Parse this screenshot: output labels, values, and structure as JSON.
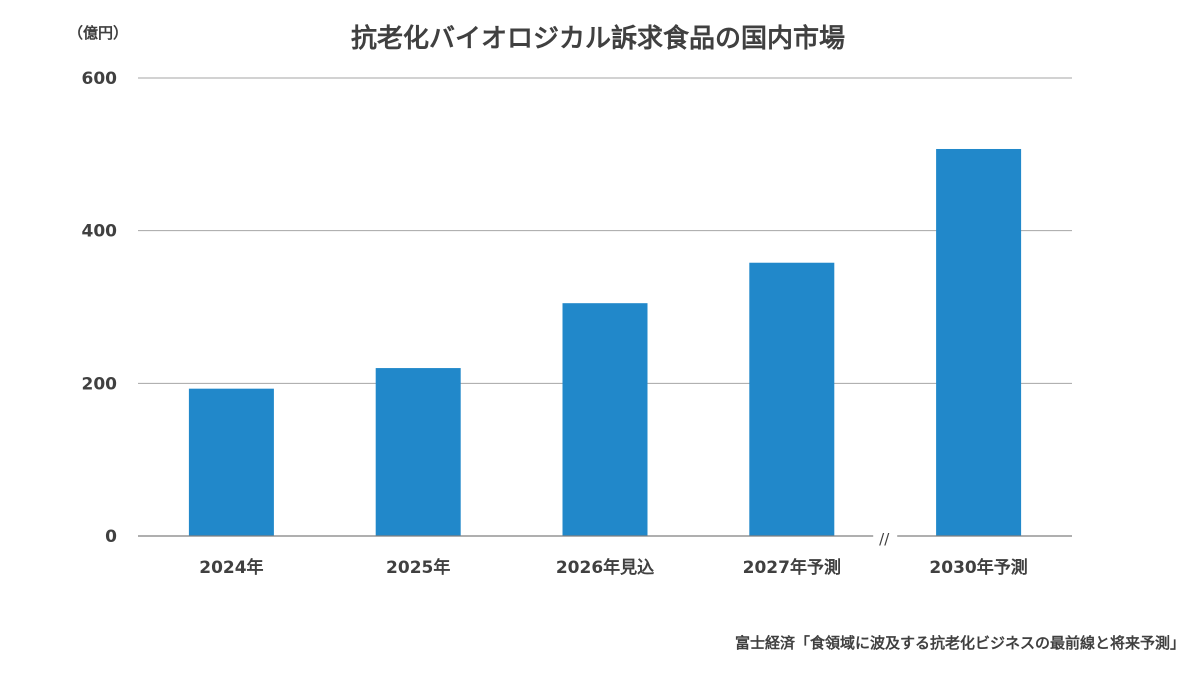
{
  "chart_data": {
    "type": "bar",
    "title": "抗老化バイオロジカル訴求食品の国内市場",
    "unit_label": "（億円）",
    "categories": [
      "2024年",
      "2025年",
      "2026年見込",
      "2027年予測",
      "2030年予測"
    ],
    "values": [
      193,
      220,
      305,
      358,
      507
    ],
    "ylim": [
      0,
      600
    ],
    "yticks": [
      0,
      200,
      400,
      600
    ],
    "grid": true,
    "axis_break_mark": "//",
    "bar_color": "#2188ca",
    "source": "富士経済「食領域に波及する抗老化ビジネスの最前線と将来予測」"
  }
}
